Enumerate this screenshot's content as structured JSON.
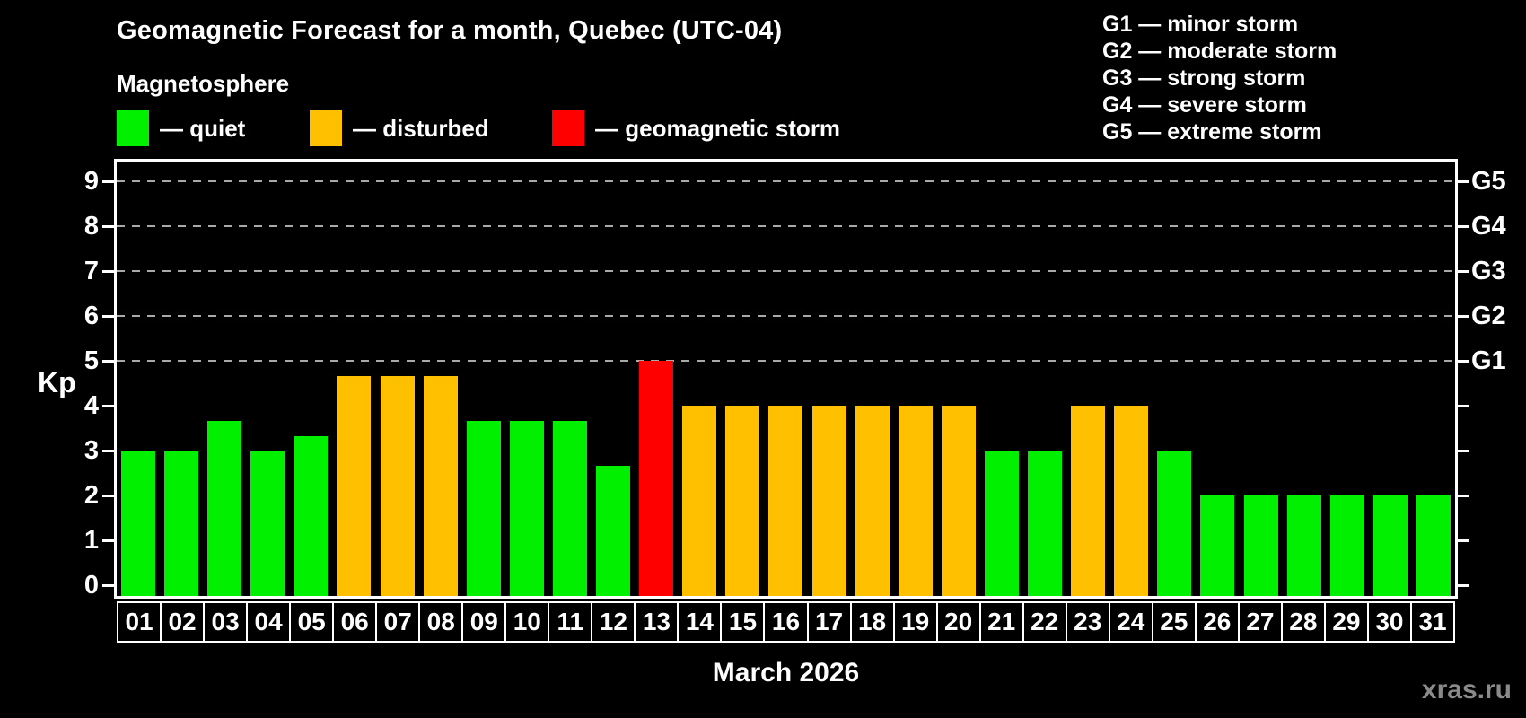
{
  "title": "Geomagnetic Forecast for a month, Quebec (UTC-04)",
  "subtitle": "Magnetosphere",
  "legend": [
    {
      "key": "quiet",
      "label": "— quiet",
      "color": "#00f000"
    },
    {
      "key": "disturbed",
      "label": "— disturbed",
      "color": "#ffc000"
    },
    {
      "key": "storm",
      "label": "— geomagnetic storm",
      "color": "#ff0000"
    }
  ],
  "storm_scale": [
    "G1 — minor storm",
    "G2 — moderate storm",
    "G3 — strong storm",
    "G4 — severe storm",
    "G5 — extreme storm"
  ],
  "watermark": "xras.ru",
  "chart_data": {
    "type": "bar",
    "title": "Geomagnetic Forecast for a month, Quebec (UTC-04)",
    "xlabel": "March 2026",
    "ylabel": "Kp",
    "ylim": [
      0,
      9.5
    ],
    "yticks": [
      0,
      1,
      2,
      3,
      4,
      5,
      6,
      7,
      8,
      9
    ],
    "gridlines_at": [
      5,
      6,
      7,
      8,
      9
    ],
    "grid": "dashed, only at storm levels Kp 5-9",
    "legend_position": "top-left",
    "right_axis_labels": [
      {
        "kp": 5,
        "label": "G1"
      },
      {
        "kp": 6,
        "label": "G2"
      },
      {
        "kp": 7,
        "label": "G3"
      },
      {
        "kp": 8,
        "label": "G4"
      },
      {
        "kp": 9,
        "label": "G5"
      }
    ],
    "categories": [
      "01",
      "02",
      "03",
      "04",
      "05",
      "06",
      "07",
      "08",
      "09",
      "10",
      "11",
      "12",
      "13",
      "14",
      "15",
      "16",
      "17",
      "18",
      "19",
      "20",
      "21",
      "22",
      "23",
      "24",
      "25",
      "26",
      "27",
      "28",
      "29",
      "30",
      "31"
    ],
    "values": [
      3.0,
      3.0,
      3.67,
      3.0,
      3.33,
      4.67,
      4.67,
      4.67,
      3.67,
      3.67,
      3.67,
      2.67,
      5.0,
      4.0,
      4.0,
      4.0,
      4.0,
      4.0,
      4.0,
      4.0,
      3.0,
      3.0,
      4.0,
      4.0,
      3.0,
      2.0,
      2.0,
      2.0,
      2.0,
      2.0,
      2.0
    ],
    "status": [
      "quiet",
      "quiet",
      "quiet",
      "quiet",
      "quiet",
      "disturbed",
      "disturbed",
      "disturbed",
      "quiet",
      "quiet",
      "quiet",
      "quiet",
      "storm",
      "disturbed",
      "disturbed",
      "disturbed",
      "disturbed",
      "disturbed",
      "disturbed",
      "disturbed",
      "quiet",
      "quiet",
      "disturbed",
      "disturbed",
      "quiet",
      "quiet",
      "quiet",
      "quiet",
      "quiet",
      "quiet",
      "quiet"
    ],
    "colors": {
      "quiet": "#00f000",
      "disturbed": "#ffc000",
      "storm": "#ff0000"
    }
  }
}
